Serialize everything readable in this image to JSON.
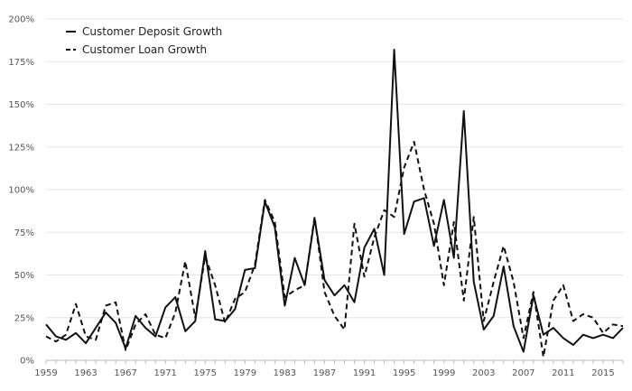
{
  "chart_data": {
    "type": "line",
    "title": "",
    "xlabel": "",
    "ylabel": "",
    "xlim": [
      1959,
      2017
    ],
    "ylim": [
      0,
      200
    ],
    "y_ticks": [
      {
        "value": 0,
        "label": "0%"
      },
      {
        "value": 25,
        "label": "25%"
      },
      {
        "value": 50,
        "label": "50%"
      },
      {
        "value": 75,
        "label": "75%"
      },
      {
        "value": 100,
        "label": "100%"
      },
      {
        "value": 125,
        "label": "125%"
      },
      {
        "value": 150,
        "label": "150%"
      },
      {
        "value": 175,
        "label": "175%"
      },
      {
        "value": 200,
        "label": "200%"
      }
    ],
    "x_ticks": [
      {
        "value": 1959,
        "label": "1959"
      },
      {
        "value": 1963,
        "label": "1963"
      },
      {
        "value": 1967,
        "label": "1967"
      },
      {
        "value": 1971,
        "label": "1971"
      },
      {
        "value": 1975,
        "label": "1975"
      },
      {
        "value": 1979,
        "label": "1979"
      },
      {
        "value": 1983,
        "label": "1983"
      },
      {
        "value": 1987,
        "label": "1987"
      },
      {
        "value": 1991,
        "label": "1991"
      },
      {
        "value": 1995,
        "label": "1995"
      },
      {
        "value": 1999,
        "label": "1999"
      },
      {
        "value": 2003,
        "label": "2003"
      },
      {
        "value": 2007,
        "label": "2007"
      },
      {
        "value": 2011,
        "label": "2011"
      },
      {
        "value": 2015,
        "label": "2015"
      }
    ],
    "grid": true,
    "legend": {
      "position": "top-left"
    },
    "x": [
      1959,
      1960,
      1961,
      1962,
      1963,
      1964,
      1965,
      1966,
      1967,
      1968,
      1969,
      1970,
      1971,
      1972,
      1973,
      1974,
      1975,
      1976,
      1977,
      1978,
      1979,
      1980,
      1981,
      1982,
      1983,
      1984,
      1985,
      1986,
      1987,
      1988,
      1989,
      1990,
      1991,
      1992,
      1993,
      1994,
      1995,
      1996,
      1997,
      1998,
      1999,
      2000,
      2001,
      2002,
      2003,
      2004,
      2005,
      2006,
      2007,
      2008,
      2009,
      2010,
      2011,
      2012,
      2013,
      2014,
      2015,
      2016,
      2017
    ],
    "series": [
      {
        "name": "Customer Deposit Growth",
        "style": "solid",
        "color": "#111111",
        "values": [
          21,
          14,
          12,
          16,
          10,
          19,
          28,
          22,
          7,
          26,
          19,
          14,
          31,
          37,
          17,
          23,
          64,
          24,
          23,
          30,
          53,
          54,
          93,
          78,
          32,
          60,
          44,
          83,
          47,
          38,
          44,
          34,
          66,
          77,
          50,
          182,
          74,
          93,
          95,
          67,
          94,
          60,
          146,
          46,
          18,
          26,
          55,
          20,
          5,
          38,
          15,
          19,
          13,
          9,
          15,
          13,
          15,
          13,
          19
        ]
      },
      {
        "name": "Customer Loan Growth",
        "style": "dashed",
        "color": "#111111",
        "values": [
          14,
          11,
          15,
          33,
          14,
          12,
          32,
          34,
          6,
          21,
          27,
          15,
          13,
          28,
          58,
          25,
          61,
          44,
          22,
          36,
          40,
          56,
          94,
          81,
          37,
          41,
          44,
          84,
          40,
          26,
          18,
          80,
          49,
          72,
          88,
          84,
          113,
          128,
          100,
          80,
          44,
          81,
          35,
          84,
          23,
          46,
          67,
          46,
          13,
          40,
          2,
          35,
          44,
          23,
          27,
          25,
          16,
          21,
          20
        ]
      }
    ]
  }
}
